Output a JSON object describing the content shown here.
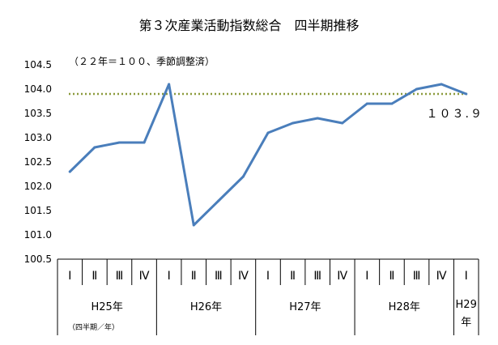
{
  "chart_data": {
    "type": "line",
    "title": "第３次産業活動指数総合　四半期推移",
    "subtitle": "（２２年＝１００、季節調整済）",
    "ylim": [
      100.5,
      104.5
    ],
    "yticks": [
      "100.5",
      "101.0",
      "101.5",
      "102.0",
      "102.5",
      "103.0",
      "103.5",
      "104.0",
      "104.5"
    ],
    "categories": [
      "Ⅰ",
      "Ⅱ",
      "Ⅲ",
      "Ⅳ",
      "Ⅰ",
      "Ⅱ",
      "Ⅲ",
      "Ⅳ",
      "Ⅰ",
      "Ⅱ",
      "Ⅲ",
      "Ⅳ",
      "Ⅰ",
      "Ⅱ",
      "Ⅲ",
      "Ⅳ",
      "Ⅰ"
    ],
    "year_groups": [
      {
        "label": "H25年",
        "count": 4
      },
      {
        "label": "H26年",
        "count": 4
      },
      {
        "label": "H27年",
        "count": 4
      },
      {
        "label": "H28年",
        "count": 4
      },
      {
        "label": "H29年",
        "count": 1
      }
    ],
    "axis_note": "（四半期／年）",
    "series": [
      {
        "values": [
          102.3,
          102.8,
          102.9,
          102.9,
          104.1,
          101.2,
          101.7,
          102.2,
          103.1,
          103.3,
          103.4,
          103.3,
          103.7,
          103.7,
          104.0,
          104.1,
          103.9
        ]
      }
    ],
    "reference_line": {
      "value": 103.9,
      "label": "１０３.９"
    },
    "colors": {
      "line": "#4A7EBB",
      "reference": "#8B9A3C",
      "axis": "#000000",
      "grid": "#000000"
    }
  }
}
